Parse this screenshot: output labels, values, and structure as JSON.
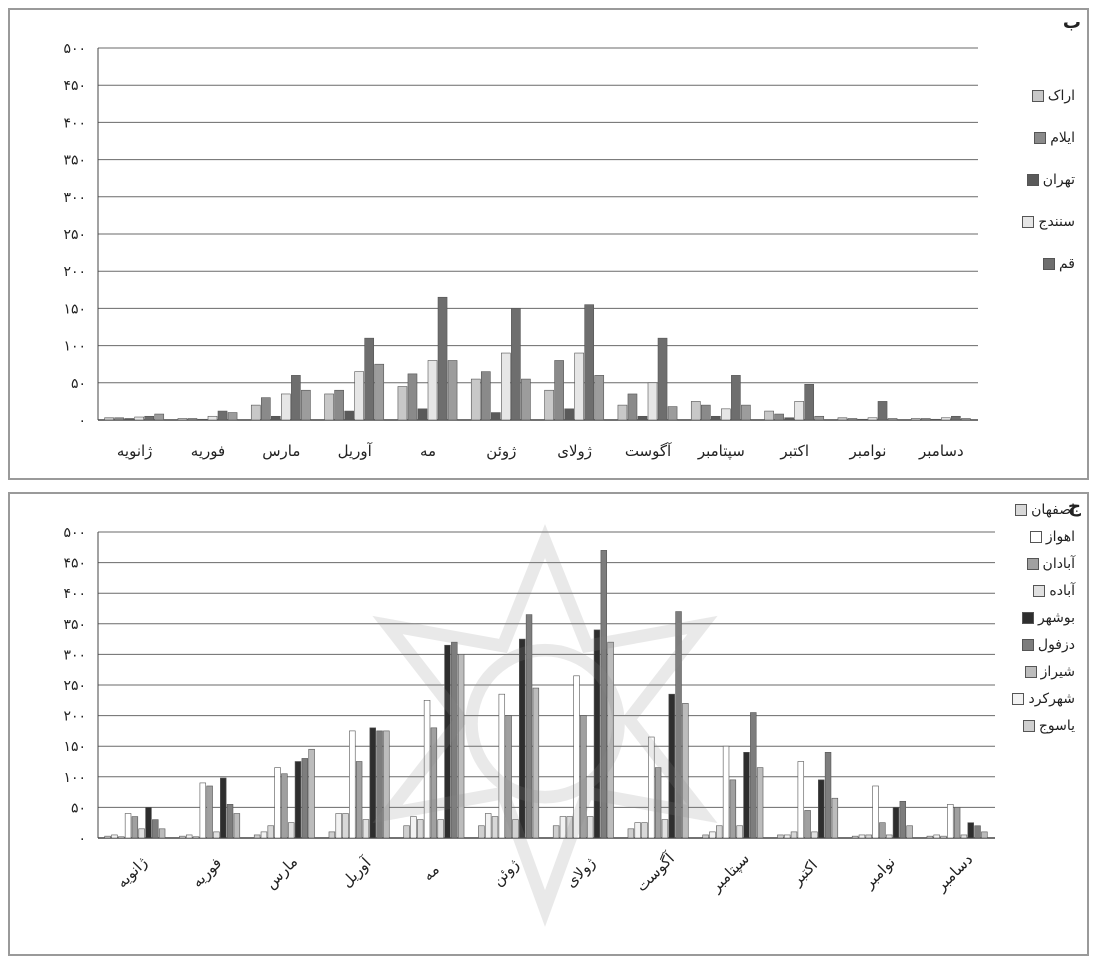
{
  "panels": {
    "b": {
      "letter": "ب"
    },
    "c": {
      "letter": "ج"
    }
  },
  "chart_data": [
    {
      "type": "bar",
      "categories": [
        "ژانویه",
        "فوریه",
        "مارس",
        "آوریل",
        "مه",
        "ژوئن",
        "ژولای",
        "آگوست",
        "سپتامبر",
        "اکتبر",
        "نوامبر",
        "دسامبر"
      ],
      "ylim": [
        0,
        500
      ],
      "yticks": [
        "۰",
        "۵۰",
        "۱۰۰",
        "۱۵۰",
        "۲۰۰",
        "۲۵۰",
        "۳۰۰",
        "۳۵۰",
        "۴۰۰",
        "۴۵۰",
        "۵۰۰"
      ],
      "series": [
        {
          "name": "اراک",
          "color": "#c8c8c8",
          "values": [
            3,
            2,
            20,
            35,
            45,
            55,
            40,
            20,
            25,
            12,
            3,
            2
          ]
        },
        {
          "name": "ایلام",
          "color": "#8a8a8a",
          "values": [
            3,
            2,
            30,
            40,
            62,
            65,
            80,
            35,
            20,
            8,
            2,
            2
          ]
        },
        {
          "name": "تهران",
          "color": "#5a5a5a",
          "values": [
            2,
            1,
            5,
            12,
            15,
            10,
            15,
            5,
            5,
            3,
            1,
            1
          ]
        },
        {
          "name": "سنندج",
          "color": "#e6e6e6",
          "values": [
            4,
            5,
            35,
            65,
            80,
            90,
            90,
            50,
            15,
            25,
            3,
            3
          ]
        },
        {
          "name": "قم",
          "color": "#6e6e6e",
          "values": [
            5,
            12,
            60,
            110,
            165,
            150,
            155,
            110,
            60,
            48,
            25,
            5
          ]
        },
        {
          "name": "",
          "color": "#9c9c9c",
          "values": [
            8,
            10,
            40,
            75,
            80,
            55,
            60,
            18,
            20,
            5,
            2,
            2
          ]
        }
      ]
    },
    {
      "type": "bar",
      "categories": [
        "ژانویه",
        "فوریه",
        "مارس",
        "آوریل",
        "مه",
        "ژوئن",
        "ژولای",
        "آگوست",
        "سپتامبر",
        "اکتبر",
        "نوامبر",
        "دسامبر"
      ],
      "ylim": [
        0,
        500
      ],
      "yticks": [
        "۰",
        "۵۰",
        "۱۰۰",
        "۱۵۰",
        "۲۰۰",
        "۲۵۰",
        "۳۰۰",
        "۳۵۰",
        "۴۰۰",
        "۴۵۰",
        "۵۰۰"
      ],
      "series": [
        {
          "name": "یاسوج",
          "color": "#cfcfcf",
          "values": [
            3,
            3,
            5,
            10,
            20,
            20,
            20,
            15,
            5,
            5,
            3,
            3
          ]
        },
        {
          "name": "شهرکرد",
          "color": "#f2f2f2",
          "values": [
            5,
            5,
            10,
            40,
            35,
            40,
            35,
            25,
            10,
            5,
            5,
            5
          ]
        },
        {
          "name": "اصفهان",
          "color": "#d8d8d8",
          "values": [
            2,
            2,
            20,
            40,
            30,
            35,
            35,
            25,
            20,
            10,
            5,
            3
          ]
        },
        {
          "name": "اهواز",
          "color": "#ffffff",
          "values": [
            40,
            90,
            115,
            175,
            225,
            235,
            265,
            165,
            150,
            125,
            85,
            55
          ]
        },
        {
          "name": "آبادان",
          "color": "#a0a0a0",
          "values": [
            35,
            85,
            105,
            125,
            180,
            200,
            200,
            115,
            95,
            45,
            25,
            50
          ]
        },
        {
          "name": "آباده",
          "color": "#e0e0e0",
          "values": [
            15,
            10,
            25,
            30,
            30,
            30,
            35,
            30,
            20,
            10,
            5,
            5
          ]
        },
        {
          "name": "بوشهر",
          "color": "#2e2e2e",
          "values": [
            50,
            98,
            125,
            180,
            315,
            325,
            340,
            235,
            140,
            95,
            50,
            25
          ]
        },
        {
          "name": "دزفول",
          "color": "#7d7d7d",
          "values": [
            30,
            55,
            130,
            175,
            320,
            365,
            470,
            370,
            205,
            140,
            60,
            20
          ]
        },
        {
          "name": "شیراز",
          "color": "#bcbcbc",
          "values": [
            15,
            40,
            145,
            175,
            300,
            245,
            320,
            220,
            115,
            65,
            20,
            10
          ]
        }
      ]
    }
  ],
  "legend_b": [
    "اراک",
    "ایلام",
    "تهران",
    "سنندج",
    "قم"
  ],
  "legend_c": [
    "اصفهان",
    "اهواز",
    "آبادان",
    "آباده",
    "بوشهر",
    "دزفول",
    "شیراز",
    "شهرکرد",
    "یاسوج"
  ]
}
